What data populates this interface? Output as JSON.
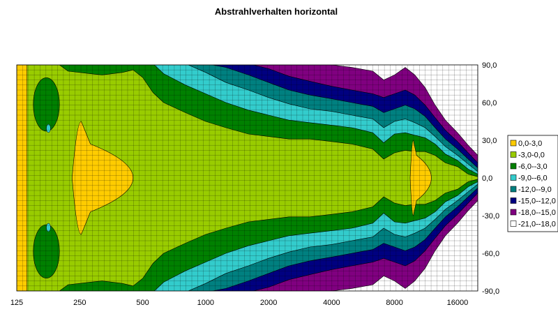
{
  "chart_data": {
    "type": "heatmap",
    "subtype": "contour",
    "title": "Abstrahlverhalten horizontal",
    "x": {
      "scale": "log2",
      "range": [
        125,
        20000
      ],
      "tick_values": [
        125,
        250,
        500,
        1000,
        2000,
        4000,
        8000,
        16000
      ],
      "tick_labels": [
        "125",
        "250",
        "500",
        "1000",
        "2000",
        "4000",
        "8000",
        "16000"
      ]
    },
    "y": {
      "range": [
        -90,
        90
      ],
      "position": "right",
      "tick_values": [
        90,
        60,
        30,
        0,
        -30,
        -60,
        -90
      ],
      "tick_labels": [
        "90,0",
        "60,0",
        "30,0",
        "0,0",
        "-30,0",
        "-60,0",
        "-90,0"
      ]
    },
    "grid": true,
    "legend_position": "right",
    "levels": [
      {
        "label": "0,0-3,0",
        "min": 0,
        "max": 3,
        "color": "#FFCC00"
      },
      {
        "label": "-3,0-0,0",
        "min": -3,
        "max": 0,
        "color": "#99CC00"
      },
      {
        "label": "-6,0--3,0",
        "min": -6,
        "max": -3,
        "color": "#008000"
      },
      {
        "label": "-9,0--6,0",
        "min": -9,
        "max": -6,
        "color": "#33CCCC"
      },
      {
        "label": "-12,0--9,0",
        "min": -12,
        "max": -9,
        "color": "#008080"
      },
      {
        "label": "-15,0--12,0",
        "min": -15,
        "max": -12,
        "color": "#000080"
      },
      {
        "label": "-18,0--15,0",
        "min": -18,
        "max": -15,
        "color": "#800080"
      },
      {
        "label": "-21,0--18,0",
        "min": -21,
        "max": -18,
        "color": "#FFFFFF"
      }
    ],
    "boundaries": {
      "description": "Upper-half angle (degrees) at which level decreases past each threshold, per frequency (Hz). Pattern is symmetric about 0.",
      "freq": [
        125,
        140,
        160,
        180,
        200,
        220,
        250,
        280,
        320,
        400,
        450,
        500,
        560,
        630,
        800,
        1000,
        1250,
        1600,
        2000,
        2500,
        3150,
        4000,
        5000,
        6300,
        7100,
        8000,
        9000,
        10000,
        11200,
        12500,
        14000,
        16000,
        18000,
        20000
      ],
      "minus3": [
        90,
        90,
        90,
        90,
        90,
        85,
        84,
        83,
        82,
        84,
        86,
        80,
        68,
        60,
        52,
        45,
        40,
        35,
        33,
        31,
        31,
        29,
        27,
        23,
        15,
        20,
        22,
        21,
        21,
        18,
        12,
        9,
        3,
        1
      ],
      "minus6": [
        91,
        91,
        91,
        91,
        91,
        91,
        91,
        91,
        91,
        91,
        91,
        91,
        91,
        83,
        74,
        67,
        60,
        54,
        50,
        46,
        44,
        42,
        40,
        36,
        28,
        35,
        36,
        34,
        32,
        27,
        19,
        14,
        7,
        3
      ],
      "minus9": [
        91,
        91,
        91,
        91,
        91,
        91,
        91,
        91,
        91,
        91,
        91,
        91,
        91,
        91,
        91,
        84,
        76,
        70,
        64,
        59,
        55,
        53,
        50,
        47,
        40,
        45,
        47,
        44,
        40,
        33,
        25,
        18,
        11,
        5
      ],
      "minus12": [
        91,
        91,
        91,
        91,
        91,
        91,
        91,
        91,
        91,
        91,
        91,
        91,
        91,
        91,
        91,
        91,
        88,
        82,
        76,
        70,
        66,
        63,
        60,
        57,
        52,
        55,
        58,
        55,
        49,
        40,
        31,
        23,
        15,
        8
      ],
      "minus15": [
        91,
        91,
        91,
        91,
        91,
        91,
        91,
        91,
        91,
        91,
        91,
        91,
        91,
        91,
        91,
        91,
        91,
        91,
        87,
        81,
        77,
        73,
        70,
        67,
        64,
        67,
        70,
        66,
        58,
        48,
        38,
        29,
        20,
        12
      ],
      "minus18": [
        91,
        91,
        91,
        91,
        91,
        91,
        91,
        91,
        91,
        91,
        91,
        91,
        91,
        91,
        91,
        91,
        91,
        91,
        91,
        91,
        91,
        90,
        88,
        85,
        78,
        82,
        88,
        82,
        72,
        58,
        46,
        36,
        26,
        18
      ]
    },
    "local_maxima_0_3": [
      {
        "freq_range": [
          125,
          140
        ],
        "angle_range": [
          -90,
          90
        ]
      },
      {
        "freq_range": [
          230,
          450
        ],
        "angle_range": [
          -45,
          45
        ]
      },
      {
        "freq_range": [
          9500,
          12000
        ],
        "angle_range": [
          -30,
          30
        ]
      }
    ],
    "local_minima_minus3_minus6": [
      {
        "freq_range": [
          150,
          200
        ],
        "angle_range": [
          45,
          72
        ]
      },
      {
        "freq_range": [
          150,
          200
        ],
        "angle_range": [
          -72,
          -45
        ]
      }
    ]
  }
}
